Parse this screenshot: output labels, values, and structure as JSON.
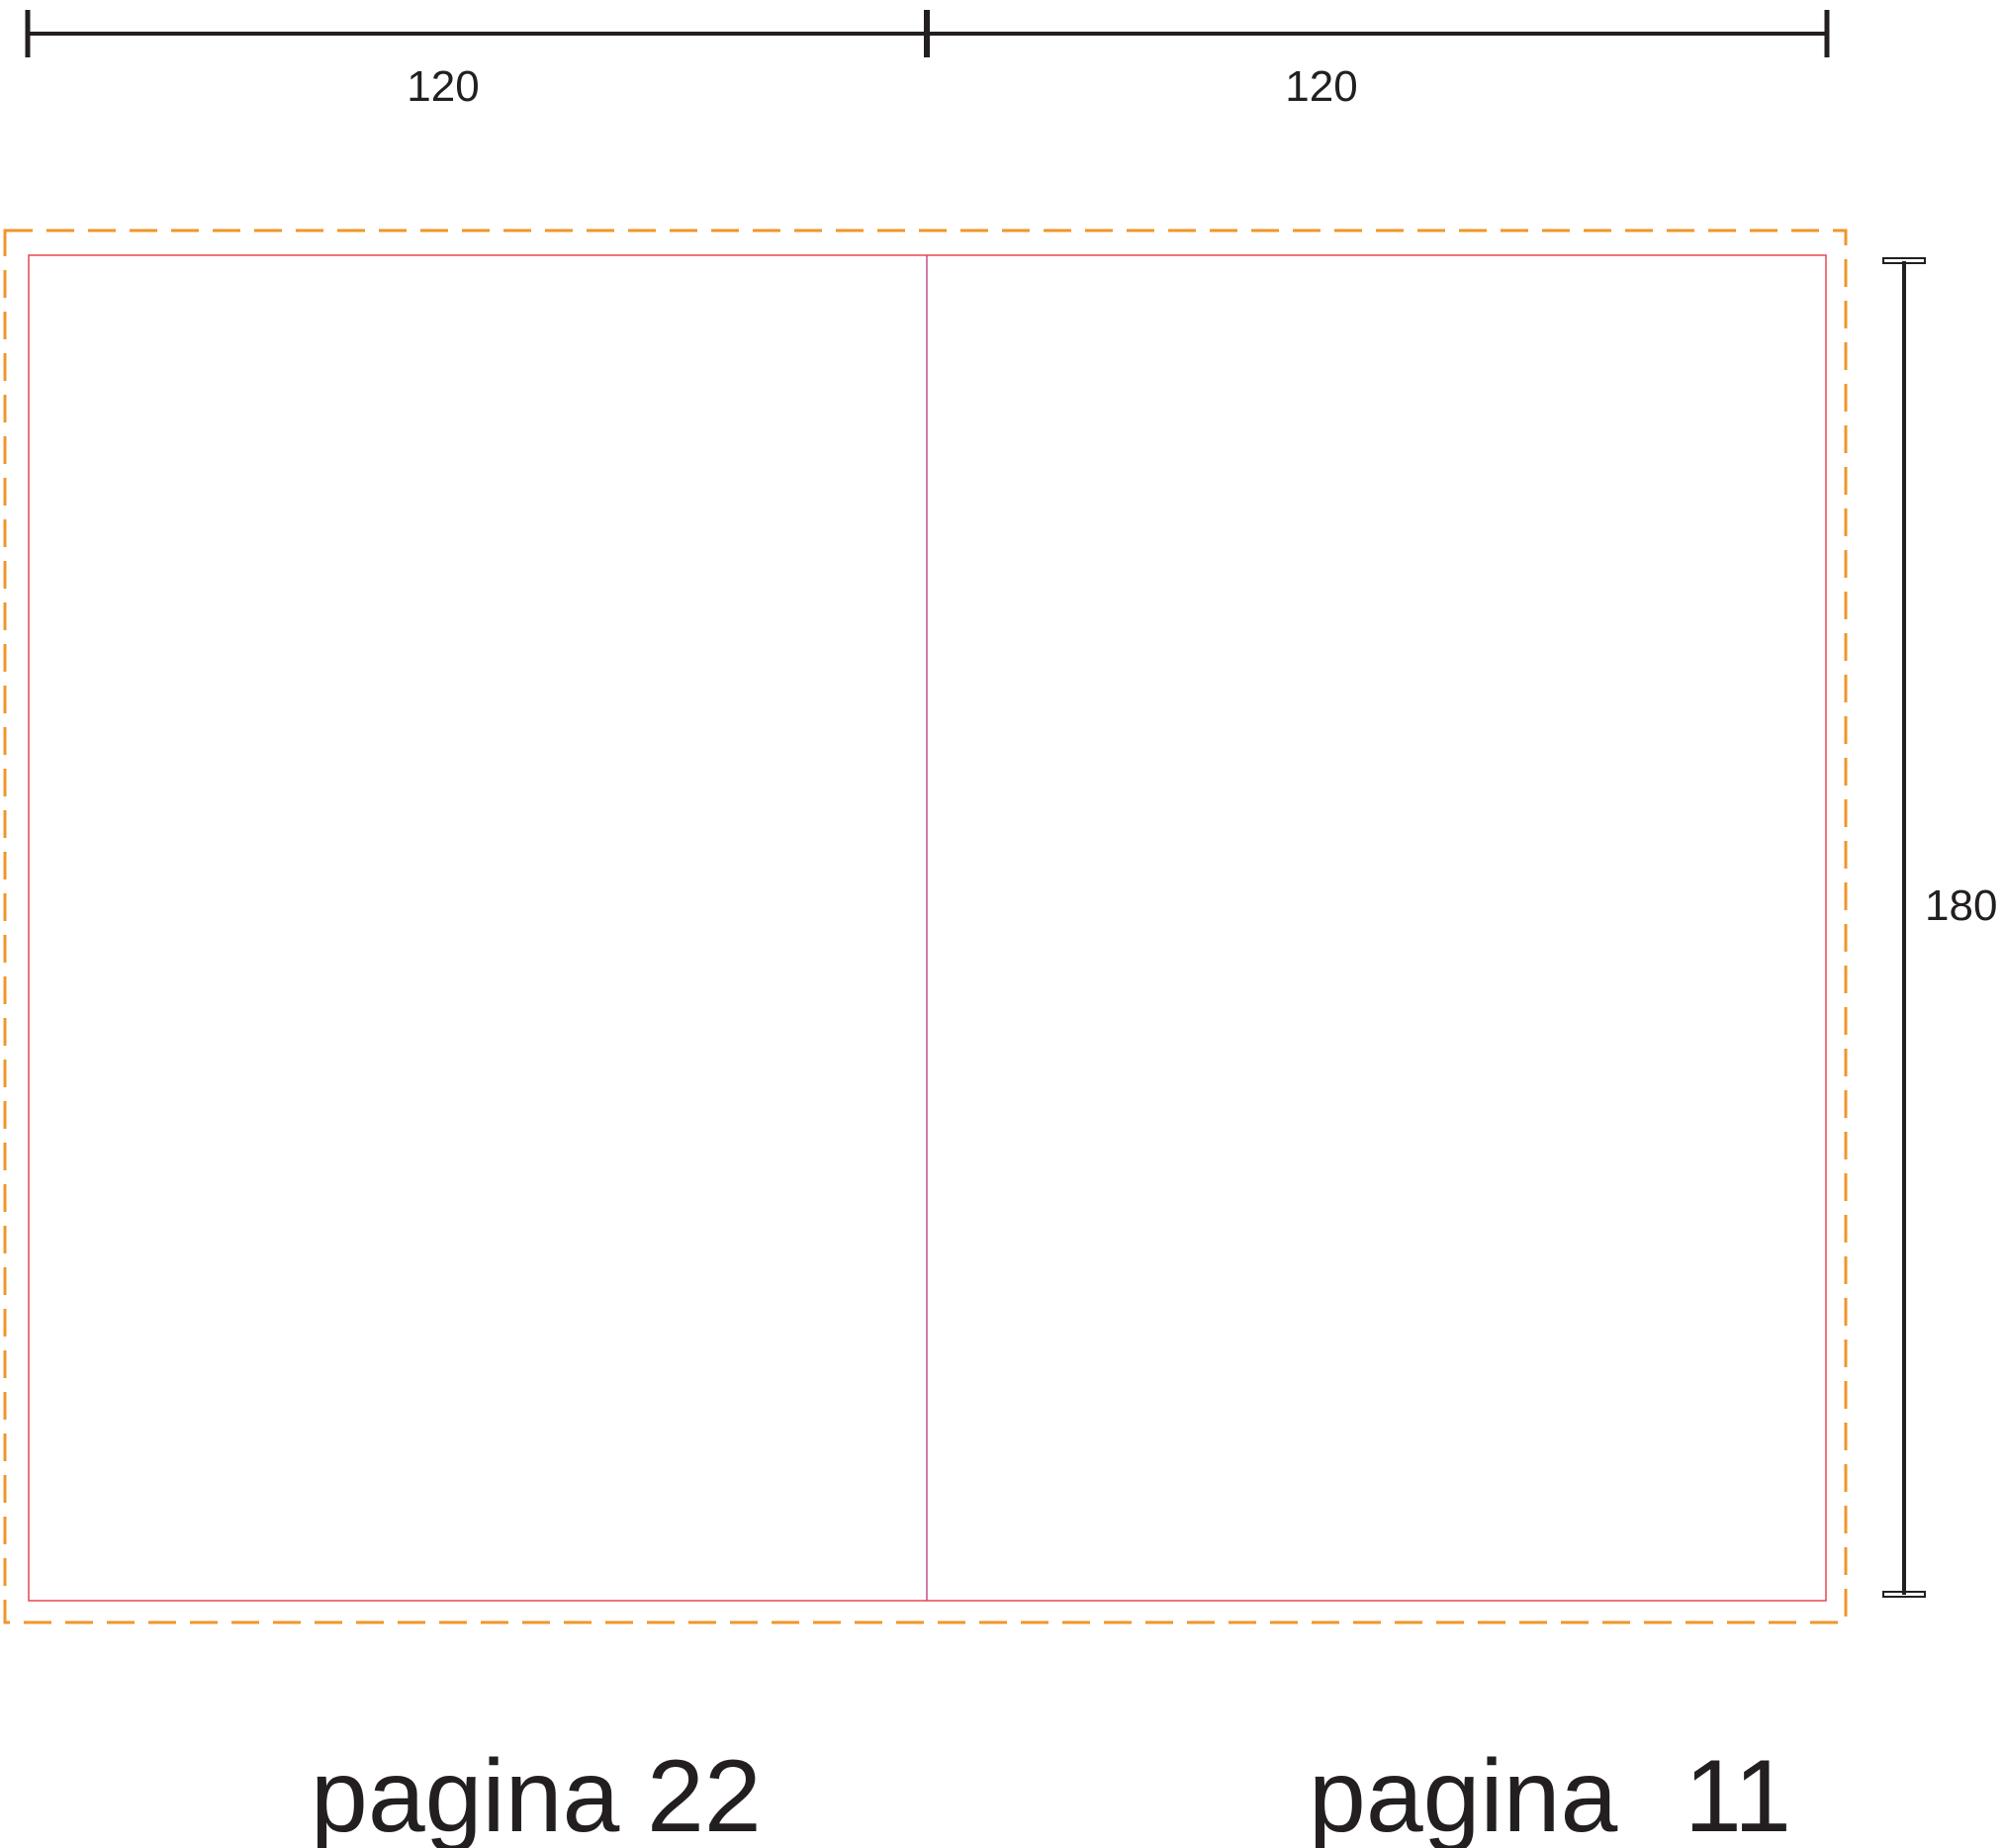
{
  "dimensions": {
    "left_width": "120",
    "right_width": "120",
    "height": "180"
  },
  "pages": {
    "left_label": "pagina",
    "left_number": "22",
    "right_label": "pagina",
    "right_number": "11"
  },
  "colors": {
    "bleed_line": "#f0962a",
    "trim_line": "#e8464f",
    "spine_line": "#c0508a",
    "dimension_line": "#231f20",
    "text": "#231f20"
  }
}
